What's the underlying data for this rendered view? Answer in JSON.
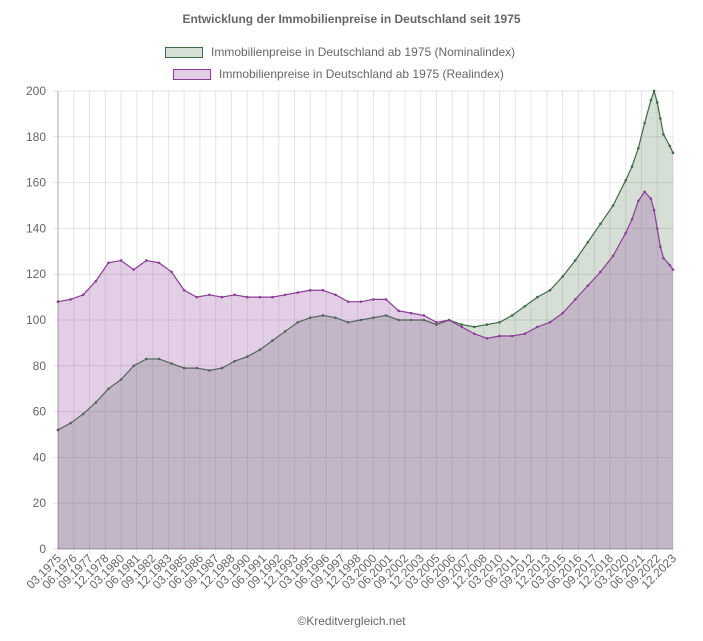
{
  "chart_data": {
    "type": "area",
    "title": "Entwicklung der Immobilienpreise in Deutschland seit 1975",
    "xlabel": "",
    "ylabel": "",
    "ylim": [
      0,
      200
    ],
    "yticks": [
      0,
      20,
      40,
      60,
      80,
      100,
      120,
      140,
      160,
      180,
      200
    ],
    "grid": true,
    "legend_position": "top",
    "x_tick_labels": [
      "03.1975",
      "06.1976",
      "09.1977",
      "12.1978",
      "03.1980",
      "06.1981",
      "09.1982",
      "12.1983",
      "03.1985",
      "06.1986",
      "09.1987",
      "12.1988",
      "03.1990",
      "06.1991",
      "09.1992",
      "12.1993",
      "03.1995",
      "06.1996",
      "09.1997",
      "12.1998",
      "03.2000",
      "06.2001",
      "09.2002",
      "12.2003",
      "03.2005",
      "06.2006",
      "09.2007",
      "12.2008",
      "03.2010",
      "06.2011",
      "09.2012",
      "12.2013",
      "03.2015",
      "06.2016",
      "09.2017",
      "12.2018",
      "03.2020",
      "06.2021",
      "09.2022",
      "12.2023"
    ],
    "x": [
      1975.0,
      1976.0,
      1977.0,
      1978.0,
      1979.0,
      1980.0,
      1981.0,
      1982.0,
      1983.0,
      1984.0,
      1985.0,
      1986.0,
      1987.0,
      1988.0,
      1989.0,
      1990.0,
      1991.0,
      1992.0,
      1993.0,
      1994.0,
      1995.0,
      1996.0,
      1997.0,
      1998.0,
      1999.0,
      2000.0,
      2001.0,
      2002.0,
      2003.0,
      2004.0,
      2005.0,
      2006.0,
      2007.0,
      2008.0,
      2009.0,
      2010.0,
      2011.0,
      2012.0,
      2013.0,
      2014.0,
      2015.0,
      2016.0,
      2017.0,
      2018.0,
      2019.0,
      2020.0,
      2020.5,
      2021.0,
      2021.5,
      2022.0,
      2022.25,
      2022.5,
      2022.75,
      2023.0,
      2023.5,
      2023.75
    ],
    "series": [
      {
        "name": "Immobilienpreise in Deutschland ab 1975 (Nominalindex)",
        "color": "#3e6b45",
        "fill": "rgba(62,110,70,0.22)",
        "values": [
          52,
          55,
          59,
          64,
          70,
          74,
          80,
          83,
          83,
          81,
          79,
          79,
          78,
          79,
          82,
          84,
          87,
          91,
          95,
          99,
          101,
          102,
          101,
          99,
          100,
          101,
          102,
          100,
          100,
          100,
          98,
          100,
          98,
          97,
          98,
          99,
          102,
          106,
          110,
          113,
          119,
          126,
          134,
          142,
          150,
          161,
          167,
          175,
          186,
          196,
          200,
          195,
          188,
          181,
          176,
          173
        ]
      },
      {
        "name": "Immobilienpreise in Deutschland ab 1975 (Realindex)",
        "color": "#8c3d97",
        "fill": "rgba(150,80,160,0.28)",
        "values": [
          108,
          109,
          111,
          117,
          125,
          126,
          122,
          126,
          125,
          121,
          113,
          110,
          111,
          110,
          111,
          110,
          110,
          110,
          111,
          112,
          113,
          113,
          111,
          108,
          108,
          109,
          109,
          104,
          103,
          102,
          99,
          100,
          97,
          94,
          92,
          93,
          93,
          94,
          97,
          99,
          103,
          109,
          115,
          121,
          128,
          138,
          144,
          152,
          156,
          153,
          148,
          140,
          132,
          127,
          124,
          122
        ]
      }
    ]
  },
  "footer": {
    "credit": "©Kreditvergleich.net"
  }
}
